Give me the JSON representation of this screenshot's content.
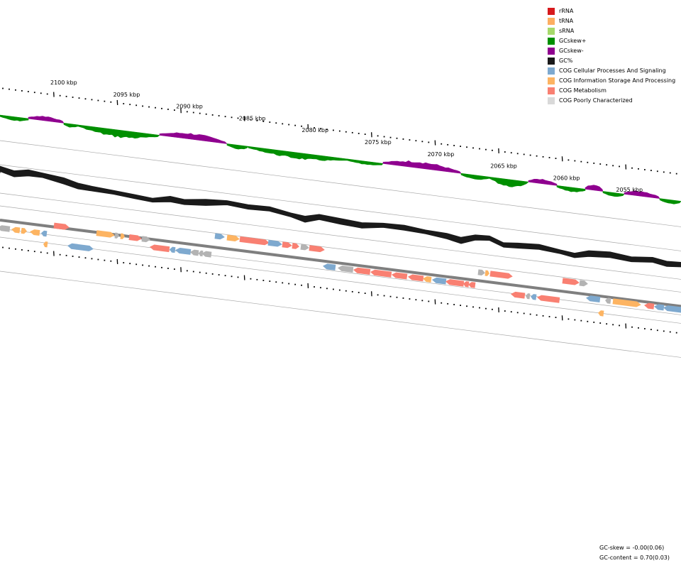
{
  "legend": [
    {
      "label": "rRNA",
      "color": "#d7191c"
    },
    {
      "label": "tRNA",
      "color": "#fdae61"
    },
    {
      "label": "sRNA",
      "color": "#a6d96a"
    },
    {
      "label": "GCskew+",
      "color": "#008f00"
    },
    {
      "label": "GCskew-",
      "color": "#8f008f"
    },
    {
      "label": "GC%",
      "color": "#1a1a1a"
    },
    {
      "label": "COG Cellular Processes And Signaling",
      "color": "#7ea9cf"
    },
    {
      "label": "COG Information Storage And Processing",
      "color": "#fdb462"
    },
    {
      "label": "COG Metabolism",
      "color": "#f98072"
    },
    {
      "label": "COG Poorly Characterized",
      "color": "#d9d9d9"
    }
  ],
  "axis": {
    "ticks": [
      "2100 kbp",
      "2095 kbp",
      "2090 kbp",
      "2085 kbp",
      "2080 kbp",
      "2075 kbp",
      "2070 kbp",
      "2065 kbp",
      "2060 kbp",
      "2055 kbp"
    ]
  },
  "stats": {
    "gc_skew": "GC-skew = -0.00(0.06)",
    "gc_content": "GC-content = 0.70(0.03)"
  },
  "colors": {
    "feature_gray": "#b3b3b3",
    "backbone": "#7f7f7f",
    "ring_line": "#9a9a9a"
  }
}
